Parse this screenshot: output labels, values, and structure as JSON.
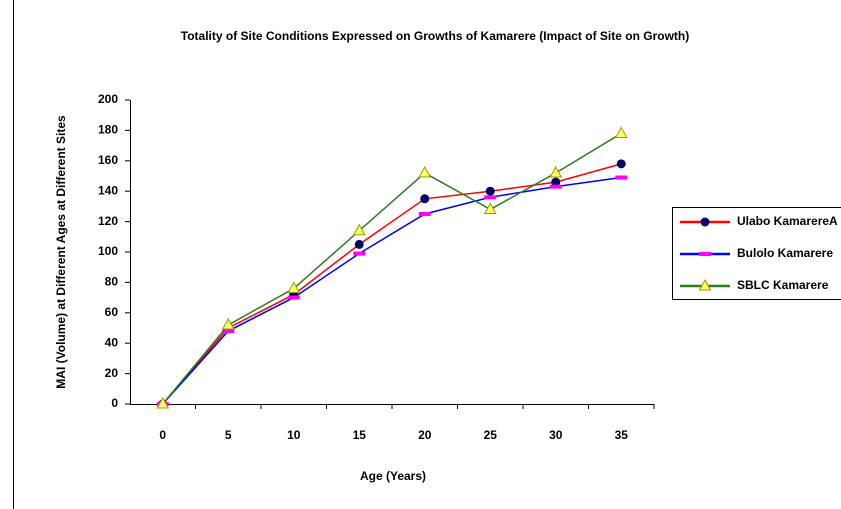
{
  "chart_data": {
    "type": "line",
    "title": "Totality of Site Conditions Expressed on Growths of Kamarere (Impact of Site on Growth)",
    "xlabel": "Age (Years)",
    "ylabel": "MAI (Volume) at Different Ages at Different Sites",
    "categories": [
      "0",
      "5",
      "10",
      "15",
      "20",
      "25",
      "30",
      "35"
    ],
    "series": [
      {
        "name": "Ulabo KamarereA",
        "color": "#ff0000",
        "marker": "circle",
        "marker_color": "#000066",
        "values": [
          0,
          50,
          72,
          105,
          135,
          140,
          146,
          158
        ]
      },
      {
        "name": "Bulolo Kamarere",
        "color": "#0000ff",
        "marker": "dash",
        "marker_color": "#ff00ff",
        "values": [
          0,
          48,
          70,
          99,
          125,
          136,
          143,
          149
        ]
      },
      {
        "name": "SBLC Kamarere",
        "color": "#2e7d1e",
        "marker": "triangle",
        "marker_color": "#ffff66",
        "values": [
          0,
          52,
          76,
          114,
          152,
          128,
          152,
          178
        ]
      }
    ],
    "ylim": [
      0,
      200
    ],
    "yticks": [
      0,
      20,
      40,
      60,
      80,
      100,
      120,
      140,
      160,
      180,
      200
    ],
    "grid": false,
    "legend": "right"
  }
}
